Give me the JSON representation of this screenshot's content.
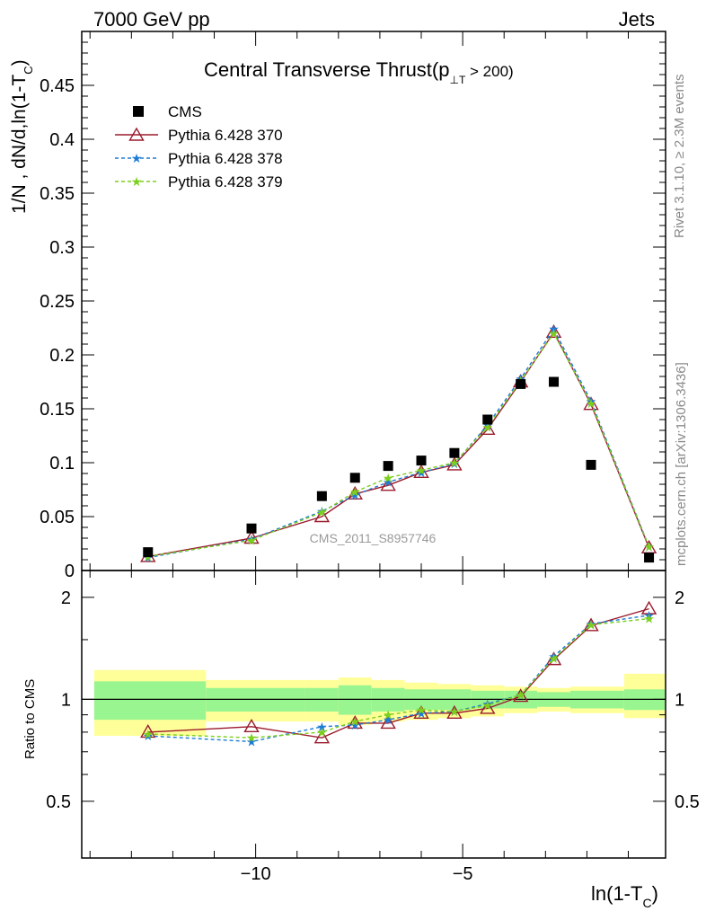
{
  "header": {
    "left_label": "7000 GeV pp",
    "right_label": "Jets"
  },
  "side_notes": {
    "rivet": "Rivet 3.1.10, ≥ 2.3M events",
    "mcplots": "mcplots.cern.ch [arXiv:1306.3436]"
  },
  "analysis_id": "CMS_2011_S8957746",
  "chart_data": [
    {
      "type": "scatter",
      "title": "Central Transverse Thrust(p",
      "title_sub": "⊥T",
      "title_tail": " > 200)",
      "ylabel": "1/N , dN/d,ln(1-T",
      "ylabel_sub": "C",
      "ylabel_tail": ")",
      "ylim": [
        0,
        0.5
      ],
      "yticks": [
        0,
        0.05,
        0.1,
        0.15,
        0.2,
        0.25,
        0.3,
        0.35,
        0.4,
        0.45
      ],
      "ytick_labels": [
        "0",
        "0.05",
        "0.1",
        "0.15",
        "0.2",
        "0.25",
        "0.3",
        "0.35",
        "0.4",
        "0.45"
      ],
      "xlim": [
        -14.2,
        -0.1
      ],
      "legend": [
        {
          "label": "CMS",
          "color": "#000000",
          "marker": "square"
        },
        {
          "label": "Pythia 6.428 370",
          "color": "#9b1b2c",
          "marker": "triangle"
        },
        {
          "label": "Pythia 6.428 378",
          "color": "#1e7bd6",
          "marker": "star"
        },
        {
          "label": "Pythia 6.428 379",
          "color": "#7ccf1c",
          "marker": "star"
        }
      ],
      "x": [
        -12.6,
        -10.1,
        -8.4,
        -7.6,
        -6.8,
        -6.0,
        -5.2,
        -4.4,
        -3.6,
        -2.8,
        -1.9,
        -0.5
      ],
      "series": [
        {
          "name": "CMS",
          "values": [
            0.017,
            0.039,
            0.069,
            0.086,
            0.097,
            0.102,
            0.109,
            0.14,
            0.173,
            0.175,
            0.098,
            0.012
          ]
        },
        {
          "name": "Pythia 6.428 370",
          "values": [
            0.013,
            0.03,
            0.05,
            0.071,
            0.079,
            0.091,
            0.098,
            0.131,
            0.175,
            0.221,
            0.154,
            0.021
          ]
        },
        {
          "name": "Pythia 6.428 378",
          "values": [
            0.012,
            0.029,
            0.055,
            0.07,
            0.082,
            0.091,
            0.099,
            0.135,
            0.178,
            0.224,
            0.157,
            0.022
          ]
        },
        {
          "name": "Pythia 6.428 379",
          "values": [
            0.013,
            0.028,
            0.054,
            0.073,
            0.086,
            0.093,
            0.1,
            0.133,
            0.176,
            0.22,
            0.155,
            0.022
          ]
        }
      ]
    },
    {
      "type": "line",
      "ylabel": "Ratio to CMS",
      "ylim": [
        0.34,
        2.4
      ],
      "yticks": [
        0.5,
        1,
        2
      ],
      "ytick_labels": [
        "0.5",
        "1",
        "2"
      ],
      "xlim": [
        -14.2,
        -0.1
      ],
      "xticks": [
        -10,
        -5
      ],
      "xtick_labels": [
        "−10",
        "−5"
      ],
      "xlabel": "ln(1-T",
      "xlabel_sub": "C",
      "xlabel_tail": ")",
      "bin_edges": [
        -13.9,
        -11.2,
        -8.8,
        -8.0,
        -7.2,
        -6.4,
        -5.6,
        -4.8,
        -4.0,
        -3.2,
        -2.4,
        -1.1,
        0.0
      ],
      "band_inner": [
        [
          0.87,
          1.13
        ],
        [
          0.92,
          1.08
        ],
        [
          0.92,
          1.08
        ],
        [
          0.9,
          1.1
        ],
        [
          0.92,
          1.08
        ],
        [
          0.93,
          1.07
        ],
        [
          0.93,
          1.07
        ],
        [
          0.94,
          1.06
        ],
        [
          0.94,
          1.06
        ],
        [
          0.95,
          1.05
        ],
        [
          0.94,
          1.06
        ],
        [
          0.93,
          1.07
        ]
      ],
      "band_outer": [
        [
          0.78,
          1.22
        ],
        [
          0.86,
          1.14
        ],
        [
          0.86,
          1.14
        ],
        [
          0.84,
          1.16
        ],
        [
          0.86,
          1.14
        ],
        [
          0.87,
          1.12
        ],
        [
          0.88,
          1.11
        ],
        [
          0.89,
          1.1
        ],
        [
          0.91,
          1.09
        ],
        [
          0.92,
          1.08
        ],
        [
          0.91,
          1.09
        ],
        [
          0.88,
          1.19
        ]
      ],
      "x": [
        -12.6,
        -10.1,
        -8.4,
        -7.6,
        -6.8,
        -6.0,
        -5.2,
        -4.4,
        -3.6,
        -2.8,
        -1.9,
        -0.5
      ],
      "series": [
        {
          "name": "Pythia 6.428 370",
          "values": [
            0.8,
            0.83,
            0.77,
            0.85,
            0.85,
            0.91,
            0.91,
            0.94,
            1.02,
            1.31,
            1.65,
            1.85
          ]
        },
        {
          "name": "Pythia 6.428 378",
          "values": [
            0.78,
            0.75,
            0.83,
            0.84,
            0.87,
            0.91,
            0.92,
            0.97,
            1.03,
            1.34,
            1.67,
            1.77
          ]
        },
        {
          "name": "Pythia 6.428 379",
          "values": [
            0.79,
            0.77,
            0.8,
            0.86,
            0.9,
            0.93,
            0.92,
            0.96,
            1.03,
            1.32,
            1.66,
            1.73
          ]
        }
      ]
    }
  ]
}
